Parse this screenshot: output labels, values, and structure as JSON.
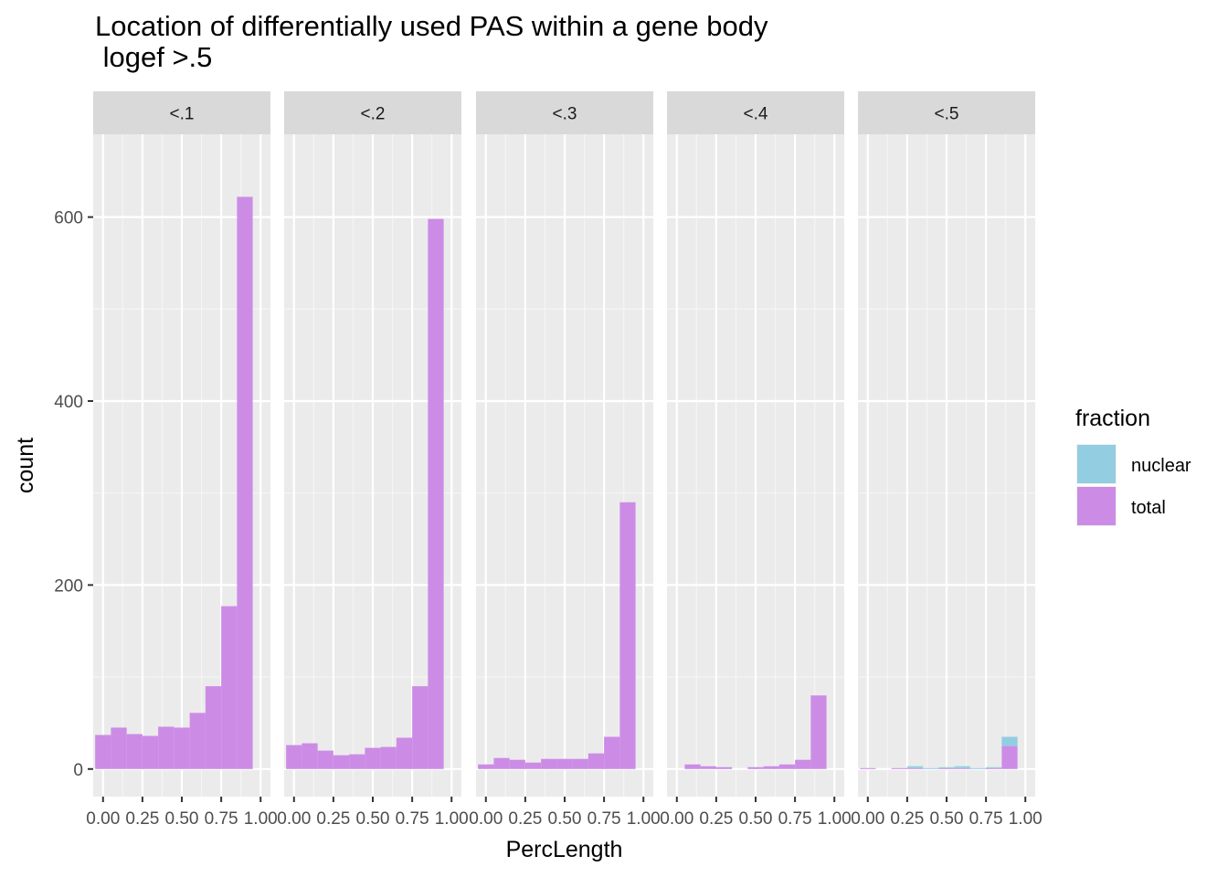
{
  "chart_data": {
    "type": "bar",
    "title": "Location of differentially used PAS within a gene body",
    "subtitle": " logef >.5",
    "xlabel": "PercLength",
    "ylabel": "count",
    "x_ticks": [
      "0.00",
      "0.25",
      "0.50",
      "0.75",
      "1.00"
    ],
    "y_ticks": [
      0,
      200,
      400,
      600
    ],
    "xlim": [
      -0.0625,
      1.0625
    ],
    "ylim": [
      -30,
      690
    ],
    "bin_width": 0.1,
    "bin_centers": [
      0.0,
      0.1,
      0.2,
      0.3,
      0.4,
      0.5,
      0.6,
      0.7,
      0.8,
      0.9,
      1.0
    ],
    "position": "stacked",
    "legend": {
      "title": "fraction",
      "placement": "right",
      "entries": [
        {
          "name": "nuclear",
          "color": "#92cde1"
        },
        {
          "name": "total",
          "color": "#cc8ce6"
        }
      ]
    },
    "panels": [
      {
        "label": "<.1",
        "series": [
          {
            "name": "nuclear",
            "values": [
              0,
              0,
              0,
              0,
              0,
              0,
              0,
              0,
              0,
              0,
              0
            ]
          },
          {
            "name": "total",
            "values": [
              37,
              45,
              38,
              36,
              46,
              45,
              61,
              90,
              177,
              622,
              0
            ]
          }
        ]
      },
      {
        "label": "<.2",
        "series": [
          {
            "name": "nuclear",
            "values": [
              0,
              0,
              0,
              0,
              0,
              0,
              0,
              0,
              0,
              0,
              0
            ]
          },
          {
            "name": "total",
            "values": [
              26,
              28,
              20,
              15,
              16,
              23,
              24,
              34,
              90,
              598,
              0
            ]
          }
        ]
      },
      {
        "label": "<.3",
        "series": [
          {
            "name": "nuclear",
            "values": [
              0,
              0,
              0,
              0,
              0,
              0,
              0,
              0,
              0,
              0,
              0
            ]
          },
          {
            "name": "total",
            "values": [
              5,
              12,
              10,
              7,
              11,
              11,
              11,
              17,
              35,
              290,
              0
            ]
          }
        ]
      },
      {
        "label": "<.4",
        "series": [
          {
            "name": "nuclear",
            "values": [
              0,
              0,
              0,
              0,
              0,
              0,
              0,
              0,
              0,
              0,
              0
            ]
          },
          {
            "name": "total",
            "values": [
              0,
              5,
              3,
              2,
              0,
              2,
              3,
              5,
              10,
              80,
              0
            ]
          }
        ]
      },
      {
        "label": "<.5",
        "series": [
          {
            "name": "nuclear",
            "values": [
              0,
              0,
              0,
              2,
              1,
              1,
              2,
              1,
              1,
              10,
              0
            ]
          },
          {
            "name": "total",
            "values": [
              1,
              0,
              1,
              1,
              0,
              1,
              1,
              0,
              1,
              25,
              0
            ]
          }
        ]
      }
    ]
  }
}
